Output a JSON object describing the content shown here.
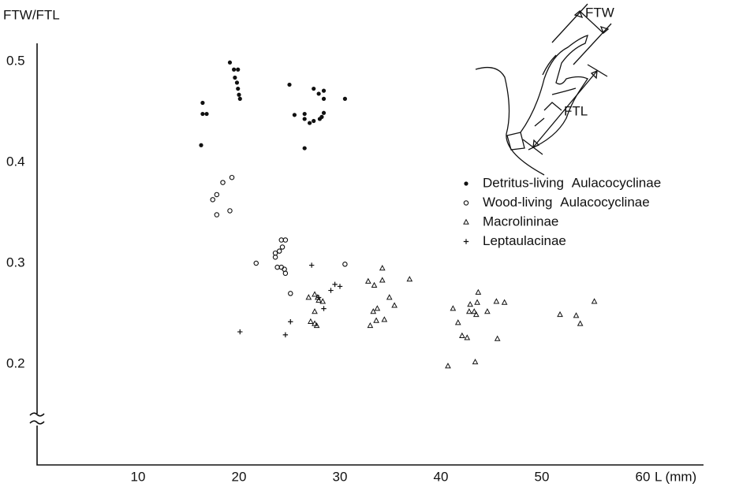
{
  "chart_data": {
    "type": "scatter",
    "y_label": "FTW/FTL",
    "x_label": "L (mm)",
    "xlim": [
      0,
      66
    ],
    "ylim": [
      0.1,
      0.52
    ],
    "xticks": [
      10,
      20,
      30,
      40,
      50,
      60
    ],
    "yticks": [
      0.2,
      0.3,
      0.4,
      0.5
    ],
    "grid": false,
    "legend": "upper right",
    "annotations": [
      {
        "text": "FTW"
      },
      {
        "text": "FTL"
      }
    ],
    "series": [
      {
        "name": "Detritus-living Aulacocyclinae",
        "color": "#111111",
        "marker": "filled-circle",
        "x": [
          16.25,
          16.4,
          16.4,
          16.8,
          19.1,
          19.5,
          19.9,
          19.6,
          19.8,
          19.9,
          20.0,
          20.1,
          25.0,
          25.5,
          26.5,
          26.5,
          26.5,
          27.0,
          27.4,
          27.4,
          27.9,
          28.0,
          28.4,
          28.4,
          28.4,
          28.2,
          30.5
        ],
        "values": [
          0.417,
          0.459,
          0.448,
          0.448,
          0.499,
          0.492,
          0.492,
          0.484,
          0.479,
          0.473,
          0.467,
          0.463,
          0.477,
          0.447,
          0.448,
          0.443,
          0.414,
          0.439,
          0.473,
          0.441,
          0.468,
          0.443,
          0.463,
          0.471,
          0.449,
          0.445,
          0.463
        ]
      },
      {
        "name": "Wood-living Aulacocyclinae",
        "color": "#111111",
        "marker": "open-circle",
        "x": [
          19.3,
          18.4,
          17.8,
          17.4,
          17.8,
          19.1,
          21.7,
          23.6,
          23.6,
          24.0,
          24.2,
          24.6,
          24.3,
          23.8,
          24.2,
          24.5,
          24.6,
          25.1,
          30.5
        ],
        "values": [
          0.385,
          0.38,
          0.368,
          0.363,
          0.348,
          0.352,
          0.3,
          0.31,
          0.306,
          0.312,
          0.323,
          0.323,
          0.316,
          0.296,
          0.296,
          0.294,
          0.29,
          0.27,
          0.299
        ]
      },
      {
        "name": "Macrolininae",
        "color": "#111111",
        "marker": "triangle",
        "x": [
          26.9,
          27.5,
          27.8,
          27.9,
          28.3,
          27.5,
          27.1,
          27.5,
          27.7,
          32.8,
          33.4,
          34.2,
          34.2,
          34.9,
          35.4,
          36.9,
          33.3,
          33.7,
          33.6,
          34.4,
          33.0,
          41.2,
          41.7,
          42.1,
          42.6,
          42.8,
          42.9,
          43.3,
          43.5,
          43.6,
          43.7,
          44.6,
          45.5,
          45.6,
          46.3,
          40.7,
          43.4,
          51.8,
          53.4,
          53.8,
          55.2
        ],
        "values": [
          0.266,
          0.269,
          0.266,
          0.263,
          0.262,
          0.252,
          0.242,
          0.24,
          0.238,
          0.282,
          0.278,
          0.295,
          0.283,
          0.266,
          0.258,
          0.284,
          0.252,
          0.255,
          0.243,
          0.244,
          0.238,
          0.255,
          0.241,
          0.228,
          0.226,
          0.252,
          0.259,
          0.252,
          0.249,
          0.261,
          0.271,
          0.252,
          0.262,
          0.225,
          0.261,
          0.198,
          0.202,
          0.249,
          0.248,
          0.24,
          0.262
        ]
      },
      {
        "name": "Leptaulacinae",
        "color": "#111111",
        "marker": "plus",
        "x": [
          20.1,
          24.6,
          25.1,
          27.2,
          27.9,
          28.4,
          29.1,
          29.5,
          30.0
        ],
        "values": [
          0.232,
          0.229,
          0.242,
          0.298,
          0.266,
          0.255,
          0.273,
          0.279,
          0.277
        ]
      }
    ]
  }
}
